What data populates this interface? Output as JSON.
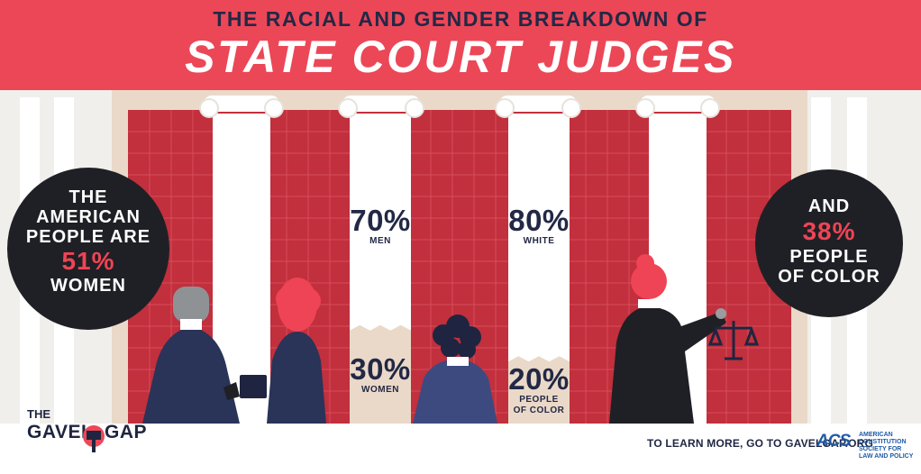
{
  "header": {
    "subtitle": "THE RACIAL AND GENDER BREAKDOWN OF",
    "title": "STATE COURT JUDGES"
  },
  "left_circle": {
    "line1": "THE",
    "line2": "AMERICAN",
    "line3": "PEOPLE ARE",
    "percent": "51%",
    "line5": "WOMEN"
  },
  "right_circle": {
    "line1": "AND",
    "percent": "38%",
    "line3": "PEOPLE",
    "line4": "OF COLOR"
  },
  "gender_stats": {
    "men_value": "70%",
    "men_label": "MEN",
    "women_value": "30%",
    "women_label": "WOMEN",
    "men_fraction": 0.7
  },
  "race_stats": {
    "white_value": "80%",
    "white_label": "WHITE",
    "poc_value": "20%",
    "poc_label_1": "PEOPLE",
    "poc_label_2": "OF COLOR",
    "white_fraction": 0.8
  },
  "logo": {
    "the": "THE",
    "gavel": "GAVEL",
    "gap": "GAP"
  },
  "footer": {
    "learn_more": "TO LEARN MORE, GO TO GAVELGAP.ORG",
    "acs_mark": "ACS",
    "acs_line1": "AMERICAN",
    "acs_line2": "CONSTITUTION",
    "acs_line3": "SOCIETY FOR",
    "acs_line4": "LAW AND POLICY"
  },
  "colors": {
    "red": "#ec4757",
    "navy": "#222845",
    "dark": "#1f2025",
    "brick": "#c22f3d"
  }
}
